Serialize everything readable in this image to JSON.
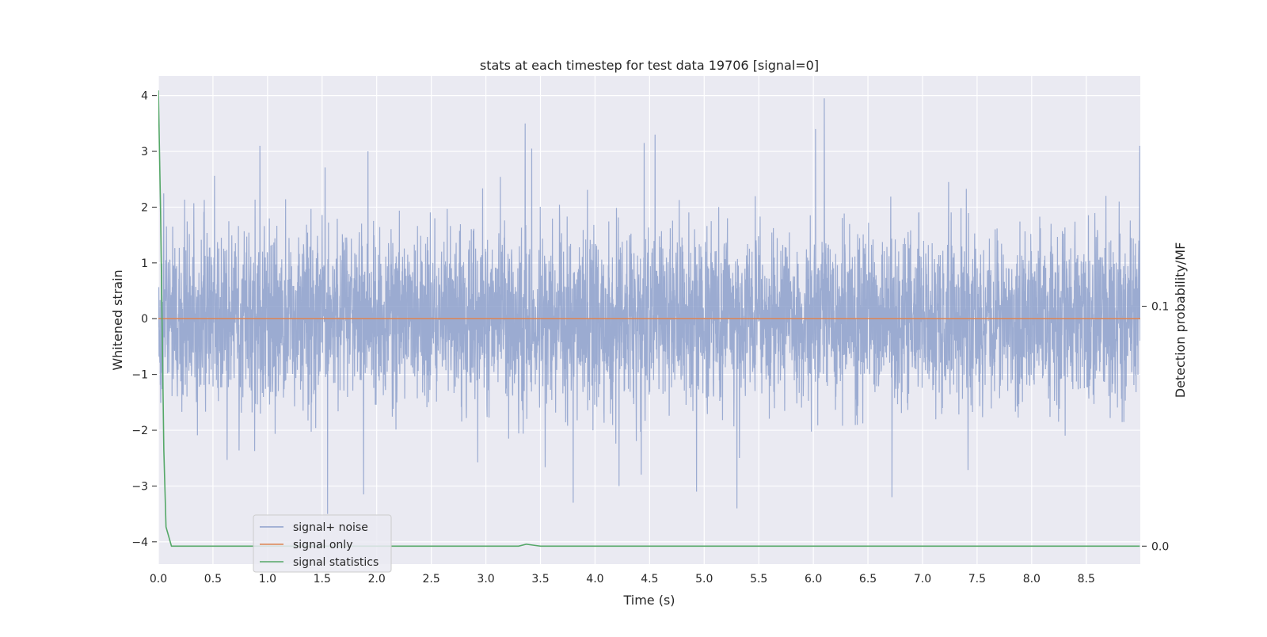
{
  "chart_data": {
    "type": "line",
    "title": "stats at each timestep for test data 19706 [signal=0]",
    "xlabel": "Time (s)",
    "ylabel": "Whitened strain",
    "y2label": "Detection probability/MF",
    "xlim": [
      0.0,
      8.995
    ],
    "ylim": [
      -4.4,
      4.35
    ],
    "y2lim": [
      -0.0075,
      0.196
    ],
    "x_ticks": [
      0.0,
      0.5,
      1.0,
      1.5,
      2.0,
      2.5,
      3.0,
      3.5,
      4.0,
      4.5,
      5.0,
      5.5,
      6.0,
      6.5,
      7.0,
      7.5,
      8.0,
      8.5
    ],
    "x_tick_labels": [
      "0.0",
      "0.5",
      "1.0",
      "1.5",
      "2.0",
      "2.5",
      "3.0",
      "3.5",
      "4.0",
      "4.5",
      "5.0",
      "5.5",
      "6.0",
      "6.5",
      "7.0",
      "7.5",
      "8.0",
      "8.5"
    ],
    "y_ticks": [
      -4,
      -3,
      -2,
      -1,
      0,
      1,
      2,
      3,
      4
    ],
    "y_tick_labels": [
      "−4",
      "−3",
      "−2",
      "−1",
      "0",
      "1",
      "2",
      "3",
      "4"
    ],
    "y2_ticks": [
      0.0,
      0.1
    ],
    "y2_tick_labels": [
      "0.0",
      "0.1"
    ],
    "grid": true,
    "legend": {
      "position": "lower-left",
      "entries": [
        {
          "label": "signal+ noise",
          "color": "#8da0cb"
        },
        {
          "label": "signal only",
          "color": "#dd8452"
        },
        {
          "label": "signal statistics",
          "color": "#55a868"
        }
      ]
    },
    "series": [
      {
        "name": "signal+ noise",
        "axis": "left",
        "kind": "dense_noise",
        "color": "#8da0cb",
        "typical_range": [
          -2.0,
          2.0
        ],
        "notable_peaks": [
          {
            "x": 0.93,
            "y": 3.1
          },
          {
            "x": 1.92,
            "y": 3.0
          },
          {
            "x": 3.36,
            "y": 3.5
          },
          {
            "x": 3.42,
            "y": 3.05
          },
          {
            "x": 4.45,
            "y": 3.15
          },
          {
            "x": 4.55,
            "y": 3.3
          },
          {
            "x": 6.02,
            "y": 3.4
          },
          {
            "x": 6.1,
            "y": 3.95
          },
          {
            "x": 8.99,
            "y": 3.1
          },
          {
            "x": 1.55,
            "y": -3.5
          },
          {
            "x": 1.88,
            "y": -3.15
          },
          {
            "x": 3.8,
            "y": -3.3
          },
          {
            "x": 4.22,
            "y": -3.0
          },
          {
            "x": 4.93,
            "y": -3.1
          },
          {
            "x": 5.3,
            "y": -3.4
          },
          {
            "x": 6.72,
            "y": -3.2
          }
        ]
      },
      {
        "name": "signal only",
        "axis": "left",
        "color": "#dd8452",
        "x": [
          0.0,
          8.995
        ],
        "y": [
          0.0,
          0.0
        ]
      },
      {
        "name": "signal statistics",
        "axis": "right",
        "color": "#55a868",
        "x": [
          0.0,
          0.02,
          0.05,
          0.07,
          0.12,
          0.2,
          3.3,
          3.37,
          3.45,
          3.5,
          8.99
        ],
        "y": [
          0.19,
          0.14,
          0.04,
          0.008,
          0.0,
          0.0,
          0.0,
          0.0008,
          0.0003,
          0.0,
          0.0
        ]
      }
    ]
  }
}
